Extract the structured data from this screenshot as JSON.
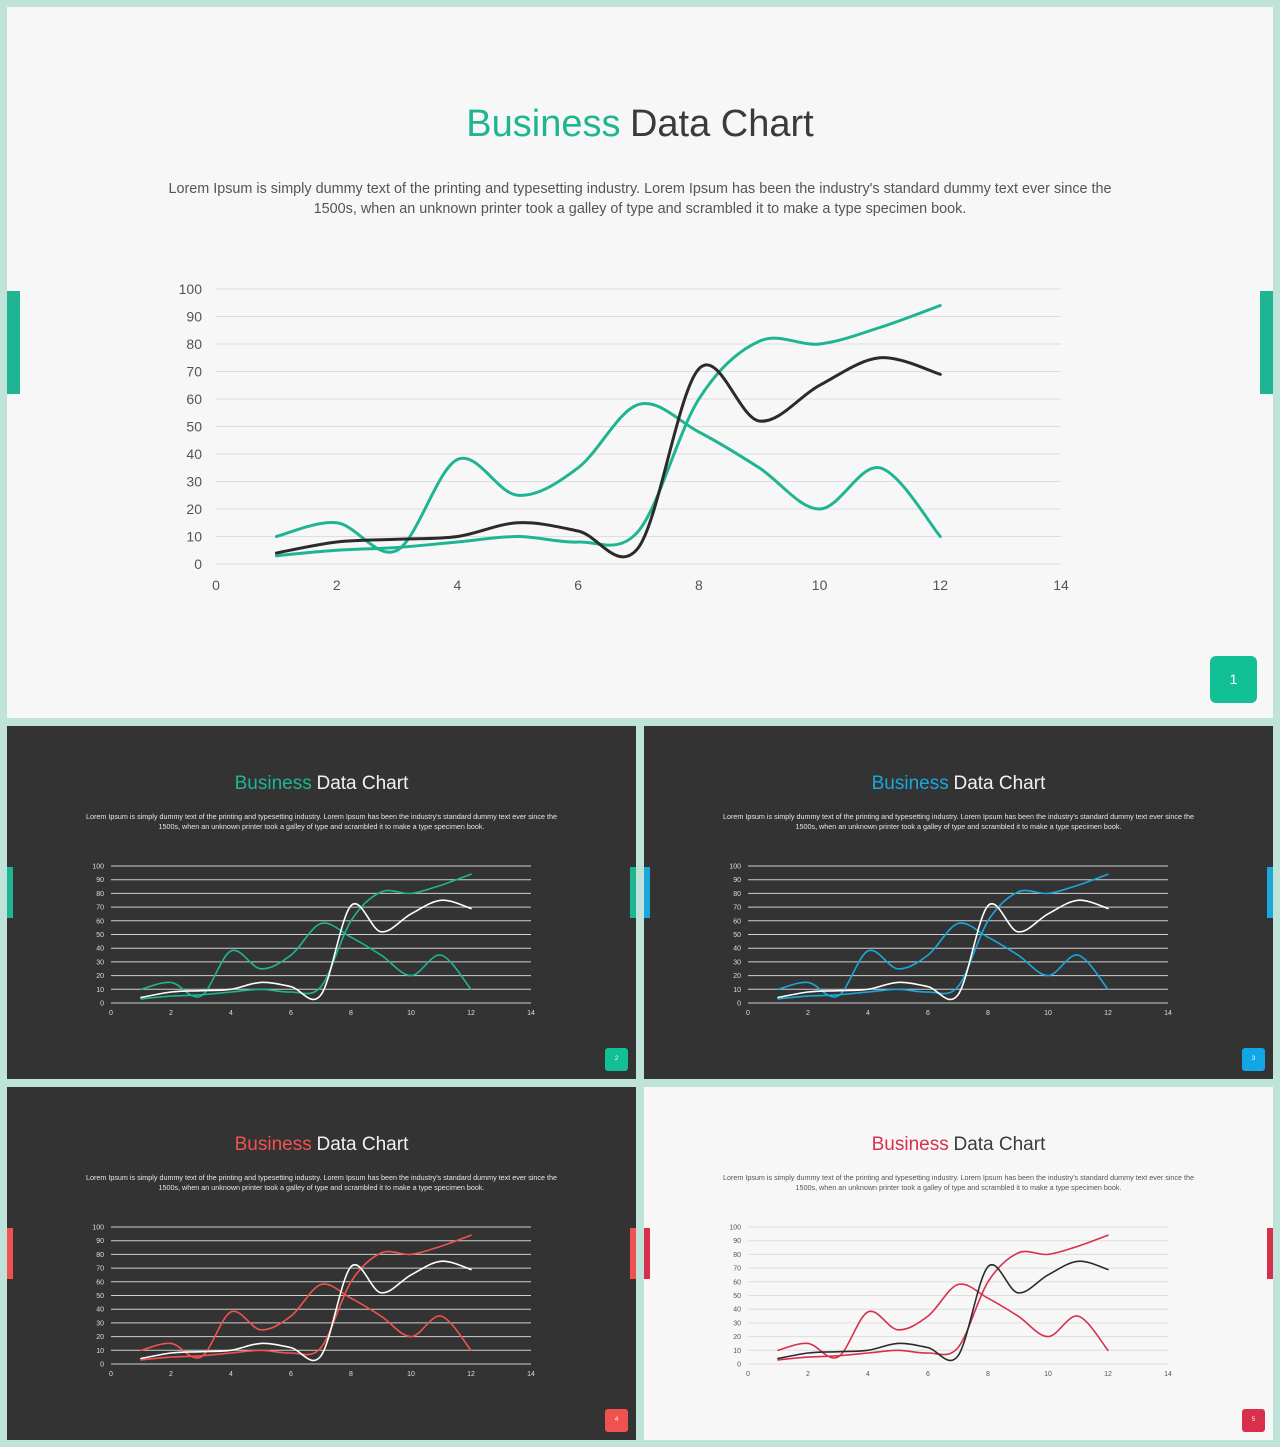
{
  "description": "Lorem Ipsum is simply dummy text of the printing and typesetting industry. Lorem Ipsum has been the industry's standard dummy text ever since the 1500s, when an unknown  printer took a galley of type and scrambled it to make a type specimen book.",
  "slides": [
    {
      "id": "main",
      "theme": "light",
      "accent": "#1fb592",
      "badge_color": "#12c096",
      "title_accent": "Business",
      "title_rest": "Data Chart",
      "page": "1"
    },
    {
      "id": "s2",
      "theme": "dark",
      "accent": "#1fb592",
      "badge_color": "#12c096",
      "title_accent": "Business",
      "title_rest": "Data Chart",
      "page": "2"
    },
    {
      "id": "s3",
      "theme": "dark",
      "accent": "#1aa7dc",
      "badge_color": "#12a6e6",
      "title_accent": "Business",
      "title_rest": "Data Chart",
      "page": "3"
    },
    {
      "id": "s4",
      "theme": "dark",
      "accent": "#f0524f",
      "badge_color": "#f0524f",
      "title_accent": "Business",
      "title_rest": "Data Chart",
      "page": "4"
    },
    {
      "id": "s5",
      "theme": "light",
      "accent": "#d8304c",
      "badge_color": "#d8304c",
      "title_accent": "Business",
      "title_rest": "Data Chart",
      "page": "5"
    }
  ],
  "chart_data": {
    "type": "scatter",
    "smooth": true,
    "xlim": [
      0,
      14
    ],
    "ylim": [
      0,
      100
    ],
    "x_ticks": [
      0,
      2,
      4,
      6,
      8,
      10,
      12,
      14
    ],
    "y_ticks": [
      0,
      10,
      20,
      30,
      40,
      50,
      60,
      70,
      80,
      90,
      100
    ],
    "grid": "horizontal",
    "legend": "none",
    "series": [
      {
        "role": "accent",
        "x": [
          1,
          2,
          3,
          4,
          5,
          6,
          7,
          8,
          9,
          10,
          11,
          12
        ],
        "y": [
          10,
          15,
          5,
          38,
          25,
          35,
          58,
          48,
          35,
          20,
          35,
          10
        ]
      },
      {
        "role": "accent",
        "x": [
          1,
          2,
          3,
          4,
          5,
          6,
          7,
          8,
          9,
          10,
          11,
          12
        ],
        "y": [
          3,
          5,
          6,
          8,
          10,
          8,
          12,
          60,
          81,
          80,
          86,
          94
        ]
      },
      {
        "role": "contrast",
        "x": [
          1,
          2,
          3,
          4,
          5,
          6,
          7,
          8,
          9,
          10,
          11,
          12
        ],
        "y": [
          4,
          8,
          9,
          10,
          15,
          12,
          6,
          71,
          52,
          65,
          75,
          69
        ]
      }
    ]
  }
}
